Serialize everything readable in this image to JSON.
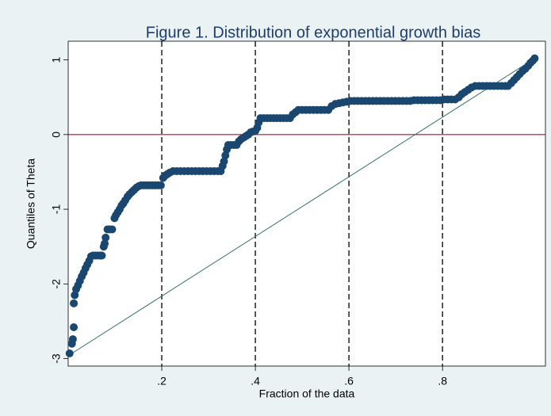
{
  "chart_data": {
    "type": "scatter",
    "title": "Figure 1. Distribution of exponential growth bias",
    "x_label": "Fraction of the data",
    "y_label": "Quantiles of Theta",
    "color": "#1a476f",
    "xlim": [
      0,
      1.02
    ],
    "ylim": [
      -3.1,
      1.25
    ],
    "xticks": [
      {
        "value": 0.2,
        "label": ".2"
      },
      {
        "value": 0.4,
        "label": ".4"
      },
      {
        "value": 0.6,
        "label": ".6"
      },
      {
        "value": 0.8,
        "label": ".8"
      }
    ],
    "yticks": [
      1,
      0,
      -1,
      -2,
      -3
    ],
    "xgrid": true,
    "xgrid_style": "dashed",
    "hline": {
      "value": 0,
      "color": "#c10534"
    },
    "reference_line": {
      "color": "#2d6d66",
      "x": [
        0.003,
        0.997
      ],
      "y": [
        -2.95,
        1.02
      ]
    },
    "x": [
      0.003,
      0.008,
      0.01,
      0.012,
      0.012,
      0.014,
      0.017,
      0.021,
      0.025,
      0.029,
      0.033,
      0.037,
      0.041,
      0.045,
      0.049,
      0.053,
      0.058,
      0.063,
      0.068,
      0.072,
      0.076,
      0.078,
      0.08,
      0.084,
      0.089,
      0.094,
      0.099,
      0.102,
      0.106,
      0.11,
      0.114,
      0.118,
      0.122,
      0.127,
      0.131,
      0.136,
      0.141,
      0.146,
      0.151,
      0.156,
      0.162,
      0.168,
      0.174,
      0.18,
      0.186,
      0.192,
      0.198,
      0.203,
      0.207,
      0.212,
      0.217,
      0.224,
      0.232,
      0.24,
      0.248,
      0.256,
      0.264,
      0.272,
      0.28,
      0.288,
      0.296,
      0.304,
      0.312,
      0.32,
      0.326,
      0.33,
      0.333,
      0.336,
      0.339,
      0.342,
      0.348,
      0.354,
      0.36,
      0.365,
      0.37,
      0.375,
      0.38,
      0.385,
      0.39,
      0.395,
      0.4,
      0.404,
      0.407,
      0.411,
      0.418,
      0.425,
      0.432,
      0.439,
      0.446,
      0.453,
      0.46,
      0.467,
      0.474,
      0.48,
      0.486,
      0.492,
      0.5,
      0.508,
      0.516,
      0.524,
      0.532,
      0.54,
      0.548,
      0.556,
      0.563,
      0.571,
      0.579,
      0.587,
      0.595,
      0.603,
      0.611,
      0.619,
      0.627,
      0.635,
      0.643,
      0.651,
      0.659,
      0.667,
      0.675,
      0.683,
      0.691,
      0.699,
      0.707,
      0.715,
      0.723,
      0.731,
      0.739,
      0.747,
      0.755,
      0.763,
      0.771,
      0.779,
      0.787,
      0.795,
      0.803,
      0.811,
      0.819,
      0.827,
      0.835,
      0.841,
      0.848,
      0.855,
      0.862,
      0.87,
      0.878,
      0.886,
      0.894,
      0.902,
      0.91,
      0.918,
      0.926,
      0.934,
      0.94,
      0.947,
      0.953,
      0.959,
      0.965,
      0.971,
      0.977,
      0.983,
      0.988,
      0.993,
      0.997
    ],
    "values": [
      -2.93,
      -2.8,
      -2.74,
      -2.58,
      -2.26,
      -2.15,
      -2.07,
      -2.02,
      -1.96,
      -1.9,
      -1.85,
      -1.79,
      -1.74,
      -1.69,
      -1.63,
      -1.62,
      -1.62,
      -1.62,
      -1.62,
      -1.62,
      -1.5,
      -1.46,
      -1.38,
      -1.27,
      -1.27,
      -1.27,
      -1.12,
      -1.08,
      -1.04,
      -1.0,
      -0.95,
      -0.92,
      -0.88,
      -0.83,
      -0.8,
      -0.77,
      -0.74,
      -0.71,
      -0.69,
      -0.68,
      -0.68,
      -0.68,
      -0.68,
      -0.68,
      -0.68,
      -0.68,
      -0.68,
      -0.58,
      -0.55,
      -0.53,
      -0.51,
      -0.49,
      -0.49,
      -0.49,
      -0.49,
      -0.49,
      -0.49,
      -0.49,
      -0.49,
      -0.49,
      -0.49,
      -0.49,
      -0.49,
      -0.49,
      -0.49,
      -0.42,
      -0.36,
      -0.28,
      -0.2,
      -0.14,
      -0.14,
      -0.14,
      -0.14,
      -0.09,
      -0.06,
      -0.04,
      -0.02,
      0.0,
      0.03,
      0.04,
      0.05,
      0.09,
      0.16,
      0.22,
      0.22,
      0.22,
      0.22,
      0.22,
      0.22,
      0.22,
      0.22,
      0.22,
      0.22,
      0.27,
      0.3,
      0.33,
      0.33,
      0.33,
      0.33,
      0.33,
      0.33,
      0.33,
      0.33,
      0.33,
      0.38,
      0.41,
      0.42,
      0.43,
      0.44,
      0.45,
      0.45,
      0.45,
      0.45,
      0.45,
      0.45,
      0.45,
      0.45,
      0.45,
      0.45,
      0.45,
      0.45,
      0.45,
      0.45,
      0.45,
      0.45,
      0.45,
      0.46,
      0.46,
      0.46,
      0.46,
      0.46,
      0.46,
      0.46,
      0.46,
      0.47,
      0.47,
      0.47,
      0.47,
      0.5,
      0.54,
      0.57,
      0.6,
      0.63,
      0.65,
      0.65,
      0.65,
      0.65,
      0.65,
      0.65,
      0.65,
      0.65,
      0.65,
      0.65,
      0.69,
      0.73,
      0.77,
      0.81,
      0.85,
      0.88,
      0.92,
      0.96,
      0.99,
      1.02
    ]
  }
}
